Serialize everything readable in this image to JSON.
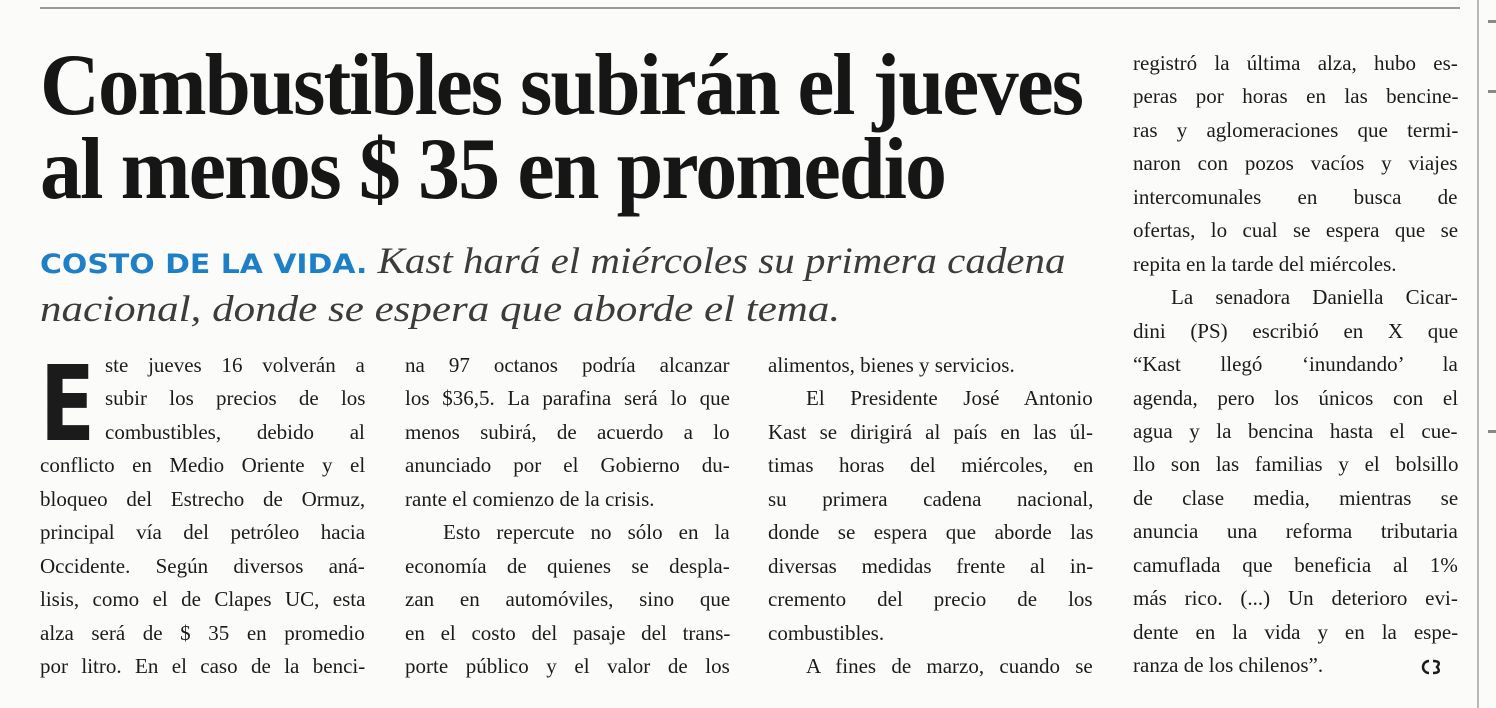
{
  "headline": {
    "lines": [
      "Combustibles subirán el jueves",
      "al menos $ 35 en promedio"
    ]
  },
  "kicker": "COSTO DE LA VIDA.",
  "deck": {
    "lines": [
      "Kast hará el miércoles su primera cadena",
      "nacional, donde se espera que aborde el tema."
    ]
  },
  "drop_cap": "E",
  "columns": [
    {
      "paragraphs": [
        {
          "lines": [
            "ste jueves 16 volverán a",
            "subir los precios de los",
            "combustibles, debido al",
            "conflicto en Medio Oriente y el",
            "bloqueo del Estrecho de Ormuz,",
            "principal vía del petróleo hacia",
            "Occidente. Según diversos aná-",
            "lisis, como el de Clapes UC, esta",
            "alza será de $ 35 en promedio",
            "por litro. En el caso de la benci-"
          ]
        }
      ]
    },
    {
      "paragraphs": [
        {
          "lines": [
            "na 97 octanos podría alcanzar",
            "los $36,5. La parafina será lo que",
            "menos subirá, de acuerdo a lo",
            "anunciado por el Gobierno du-",
            "rante el comienzo de la crisis."
          ]
        },
        {
          "lines": [
            "Esto repercute no sólo en la",
            "economía de quienes se despla-",
            "zan en automóviles, sino que",
            "en el costo del pasaje del trans-",
            "porte público y el valor de los"
          ]
        }
      ]
    },
    {
      "paragraphs": [
        {
          "lines": [
            "alimentos, bienes y servicios."
          ]
        },
        {
          "lines": [
            "El Presidente José Antonio",
            "Kast se dirigirá al país en las úl-",
            "timas horas del miércoles, en",
            "su primera cadena nacional,",
            "donde se espera que aborde las",
            "diversas medidas frente al in-",
            "cremento del precio de los",
            "combustibles."
          ]
        },
        {
          "lines": [
            "A fines de marzo, cuando se"
          ]
        }
      ]
    },
    {
      "paragraphs": [
        {
          "lines": [
            "registró la última alza, hubo es-",
            "peras por horas en las bencine-",
            "ras y aglomeraciones que termi-",
            "naron con pozos vacíos y viajes",
            "intercomunales en busca de",
            "ofertas, lo cual se espera que se",
            "repita en la tarde del miércoles."
          ]
        },
        {
          "lines": [
            "La senadora Daniella Cicar-",
            "dini (PS) escribió en X que",
            "“Kast llegó ‘inundando’ la",
            "agenda, pero los únicos con el",
            "agua y la bencina hasta el cue-",
            "llo son las familias y el bolsillo",
            "de clase media, mientras se",
            "anuncia una reforma tributaria",
            "camuflada que beneficia al 1%",
            "más rico. (...) Un deterioro evi-",
            "dente en la vida y en la espe-",
            "ranza de los chilenos”."
          ]
        }
      ]
    }
  ]
}
